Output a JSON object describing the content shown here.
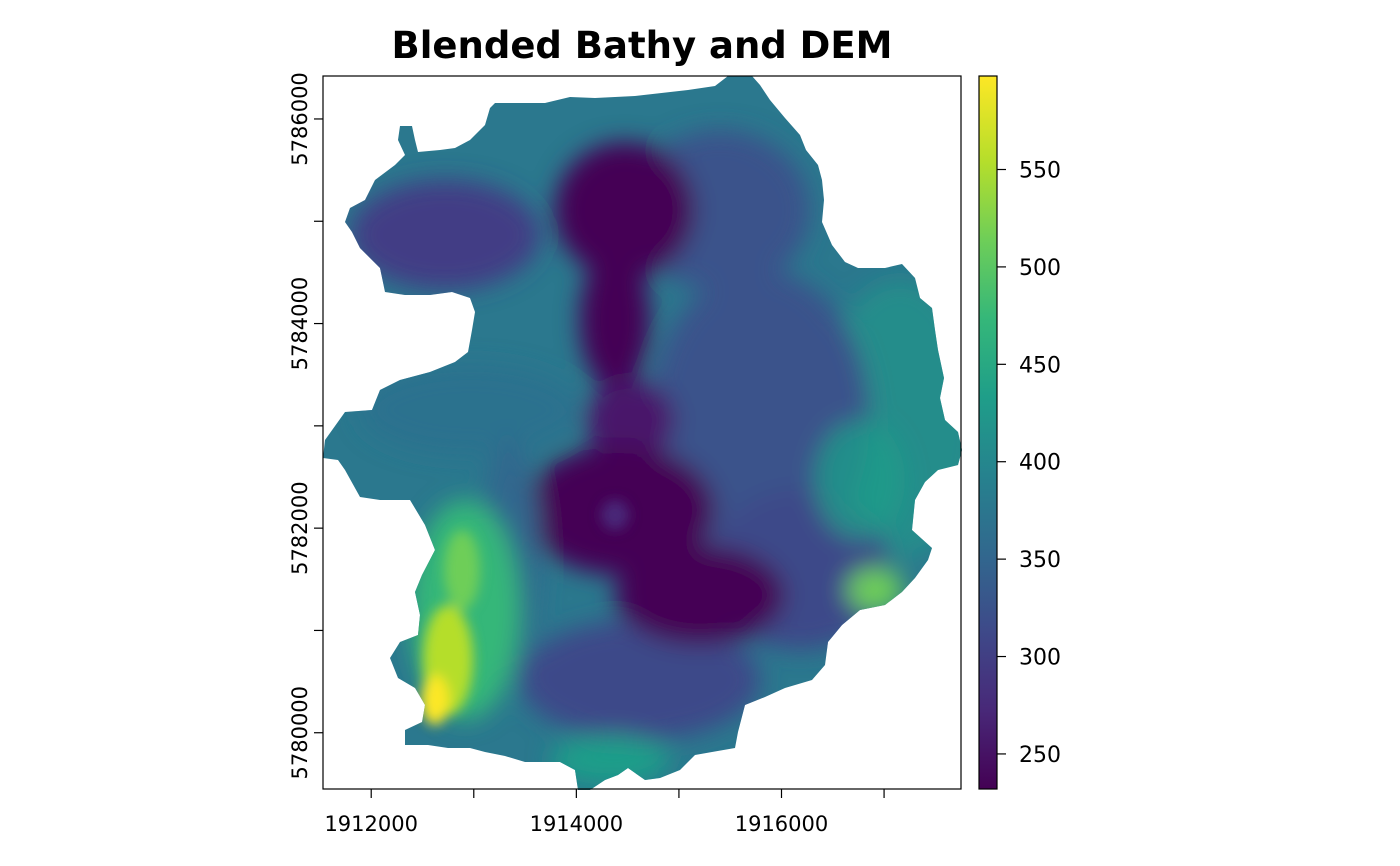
{
  "chart_data": {
    "type": "heatmap",
    "title": "Blended Bathy and DEM",
    "xlabel": "",
    "ylabel": "",
    "xlim": [
      1911530,
      1917750
    ],
    "ylim": [
      5779450,
      5786420
    ],
    "x_ticks": [
      1912000,
      1913000,
      1914000,
      1915000,
      1916000,
      1917000
    ],
    "x_tick_labels": [
      "1912000",
      "",
      "1914000",
      "",
      "1916000",
      ""
    ],
    "y_ticks": [
      5780000,
      5781000,
      5782000,
      5783000,
      5784000,
      5785000,
      5786000
    ],
    "y_tick_labels": [
      "5780000",
      "",
      "5782000",
      "",
      "5784000",
      "",
      "5786000"
    ],
    "colorbar": {
      "colormap": "viridis",
      "range": [
        232,
        598
      ],
      "ticks": [
        250,
        300,
        350,
        400,
        450,
        500,
        550
      ],
      "tick_labels": [
        "250",
        "300",
        "350",
        "400",
        "450",
        "500",
        "550"
      ]
    },
    "viridis_colors": [
      "#440154",
      "#482878",
      "#3e4989",
      "#31688e",
      "#26828e",
      "#1f9e89",
      "#35b779",
      "#6ece58",
      "#b5de2b",
      "#fde725"
    ],
    "grid": false,
    "legend": "colorbar on right"
  }
}
